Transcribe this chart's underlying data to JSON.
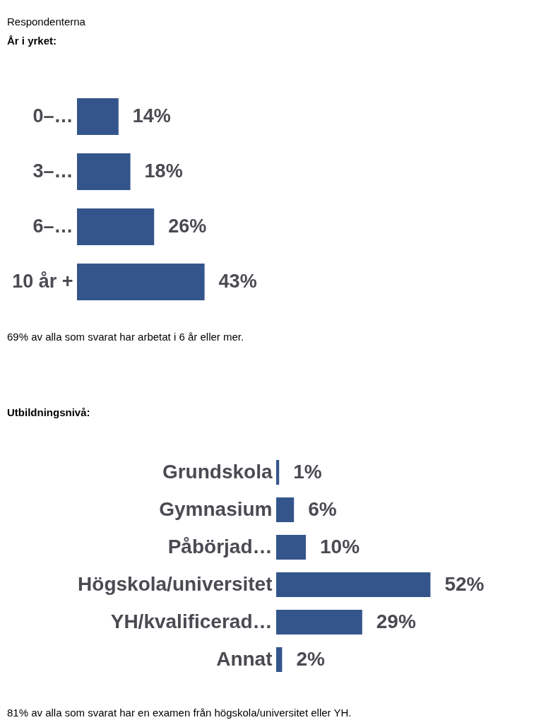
{
  "chart_data": [
    {
      "type": "bar",
      "orientation": "horizontal",
      "title": "Respondenterna",
      "subtitle": "År i yrket:",
      "categories": [
        "0–…",
        "3–…",
        "6–…",
        "10 år +"
      ],
      "values": [
        14,
        18,
        26,
        43
      ],
      "value_labels": [
        "14%",
        "18%",
        "26%",
        "43%"
      ],
      "color": "#34558b",
      "annotations": [
        "69% av alla som svarat har arbetat i 6 år eller mer."
      ]
    },
    {
      "type": "bar",
      "orientation": "horizontal",
      "title": "Utbildningsnivå:",
      "categories": [
        "Grundskola",
        "Gymnasium",
        "Påbörjad…",
        "Högskola/universitet",
        "YH/kvalificerad…",
        "Annat"
      ],
      "values": [
        1,
        6,
        10,
        52,
        29,
        2
      ],
      "value_labels": [
        "1%",
        "6%",
        "10%",
        "52%",
        "29%",
        "2%"
      ],
      "color": "#34558b",
      "annotations": [
        "81% av alla som svarat har en examen från högskola/universitet eller YH."
      ]
    }
  ]
}
